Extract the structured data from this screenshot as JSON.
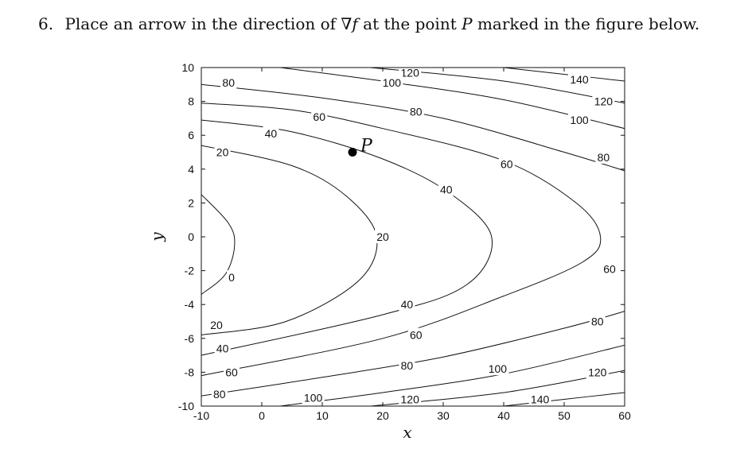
{
  "problem": {
    "number": "6.",
    "text_before": "Place an arrow in the direction of",
    "gradient_symbol": "∇f",
    "text_mid": "at the point",
    "point_name": "P",
    "text_after": "marked in the figure below."
  },
  "chart_data": {
    "type": "contour",
    "xlabel": "x",
    "ylabel": "y",
    "xlim": [
      -10,
      60
    ],
    "ylim": [
      -10,
      10
    ],
    "xticks": [
      "-10",
      "0",
      "10",
      "20",
      "30",
      "40",
      "50",
      "60"
    ],
    "yticks": [
      "10",
      "8",
      "6",
      "4",
      "2",
      "0",
      "-2",
      "-4",
      "-6",
      "-8",
      "-10"
    ],
    "point": {
      "label": "P",
      "x": 15,
      "y": 5
    },
    "contour_labels": [
      {
        "text": "80",
        "x": -5.5,
        "y": 9.1
      },
      {
        "text": "120",
        "x": 24.5,
        "y": 9.7
      },
      {
        "text": "100",
        "x": 21.5,
        "y": 9.1
      },
      {
        "text": "140",
        "x": 52.5,
        "y": 9.3
      },
      {
        "text": "120",
        "x": 56.5,
        "y": 8.0
      },
      {
        "text": "80",
        "x": 25.5,
        "y": 7.4
      },
      {
        "text": "60",
        "x": 9.5,
        "y": 7.1
      },
      {
        "text": "100",
        "x": 52.5,
        "y": 6.9
      },
      {
        "text": "40",
        "x": 1.5,
        "y": 6.1
      },
      {
        "text": "20",
        "x": -6.5,
        "y": 5.0
      },
      {
        "text": "60",
        "x": 40.5,
        "y": 4.3
      },
      {
        "text": "80",
        "x": 56.5,
        "y": 4.7
      },
      {
        "text": "40",
        "x": 30.5,
        "y": 2.8
      },
      {
        "text": "20",
        "x": 20.0,
        "y": 0.0
      },
      {
        "text": "0",
        "x": -5.0,
        "y": -2.4
      },
      {
        "text": "60",
        "x": 57.5,
        "y": -1.9
      },
      {
        "text": "40",
        "x": 24.0,
        "y": -4.0
      },
      {
        "text": "20",
        "x": -7.5,
        "y": -5.2
      },
      {
        "text": "80",
        "x": 55.5,
        "y": -5.0
      },
      {
        "text": "60",
        "x": 25.5,
        "y": -5.8
      },
      {
        "text": "40",
        "x": -6.5,
        "y": -6.6
      },
      {
        "text": "80",
        "x": 24.0,
        "y": -7.6
      },
      {
        "text": "60",
        "x": -5.0,
        "y": -8.0
      },
      {
        "text": "100",
        "x": 39.0,
        "y": -7.8
      },
      {
        "text": "120",
        "x": 55.5,
        "y": -8.0
      },
      {
        "text": "80",
        "x": -7.0,
        "y": -9.3
      },
      {
        "text": "100",
        "x": 8.5,
        "y": -9.5
      },
      {
        "text": "120",
        "x": 24.5,
        "y": -9.6
      },
      {
        "text": "140",
        "x": 46.0,
        "y": -9.6
      }
    ],
    "contours": [
      {
        "level": "0",
        "points": [
          [
            -10,
            2.5
          ],
          [
            -5.5,
            0.8
          ],
          [
            -4.5,
            -0.5
          ],
          [
            -6,
            -2.2
          ],
          [
            -10,
            -3.4
          ]
        ]
      },
      {
        "level": "20",
        "points": [
          [
            -10,
            5.4
          ],
          [
            5,
            4.2
          ],
          [
            14,
            2.4
          ],
          [
            19,
            0
          ],
          [
            16,
            -2.6
          ],
          [
            4,
            -5.0
          ],
          [
            -10,
            -5.8
          ]
        ]
      },
      {
        "level": "40",
        "points": [
          [
            -10,
            6.9
          ],
          [
            5,
            6.2
          ],
          [
            20,
            4.6
          ],
          [
            31,
            2.6
          ],
          [
            38,
            0
          ],
          [
            34,
            -2.8
          ],
          [
            20,
            -4.6
          ],
          [
            -10,
            -7.0
          ]
        ]
      },
      {
        "level": "60",
        "points": [
          [
            -10,
            7.9
          ],
          [
            5,
            7.5
          ],
          [
            20,
            6.4
          ],
          [
            40,
            4.5
          ],
          [
            52,
            2.0
          ],
          [
            56,
            0
          ],
          [
            53,
            -1.5
          ],
          [
            40,
            -3.5
          ],
          [
            20,
            -6.0
          ],
          [
            -10,
            -8.2
          ]
        ]
      },
      {
        "level": "80a",
        "points": [
          [
            -10,
            9.0
          ],
          [
            10,
            8.2
          ],
          [
            30,
            7.0
          ],
          [
            50,
            5.0
          ],
          [
            60,
            3.9
          ]
        ]
      },
      {
        "level": "80b",
        "points": [
          [
            -10,
            -9.4
          ],
          [
            10,
            -8.3
          ],
          [
            30,
            -7.1
          ],
          [
            50,
            -5.4
          ],
          [
            60,
            -4.4
          ]
        ]
      },
      {
        "level": "100a",
        "points": [
          [
            3,
            10
          ],
          [
            20,
            9.2
          ],
          [
            40,
            8.1
          ],
          [
            60,
            6.4
          ]
        ]
      },
      {
        "level": "100b",
        "points": [
          [
            3,
            -10
          ],
          [
            20,
            -9.2
          ],
          [
            40,
            -8.1
          ],
          [
            60,
            -6.4
          ]
        ]
      },
      {
        "level": "120a",
        "points": [
          [
            18,
            10
          ],
          [
            40,
            9.2
          ],
          [
            60,
            7.9
          ]
        ]
      },
      {
        "level": "120b",
        "points": [
          [
            18,
            -10
          ],
          [
            40,
            -9.2
          ],
          [
            60,
            -7.9
          ]
        ]
      },
      {
        "level": "140a",
        "points": [
          [
            40,
            10
          ],
          [
            50,
            9.6
          ],
          [
            60,
            9.2
          ]
        ]
      },
      {
        "level": "140b",
        "points": [
          [
            40,
            -10
          ],
          [
            50,
            -9.6
          ],
          [
            60,
            -9.2
          ]
        ]
      }
    ]
  }
}
